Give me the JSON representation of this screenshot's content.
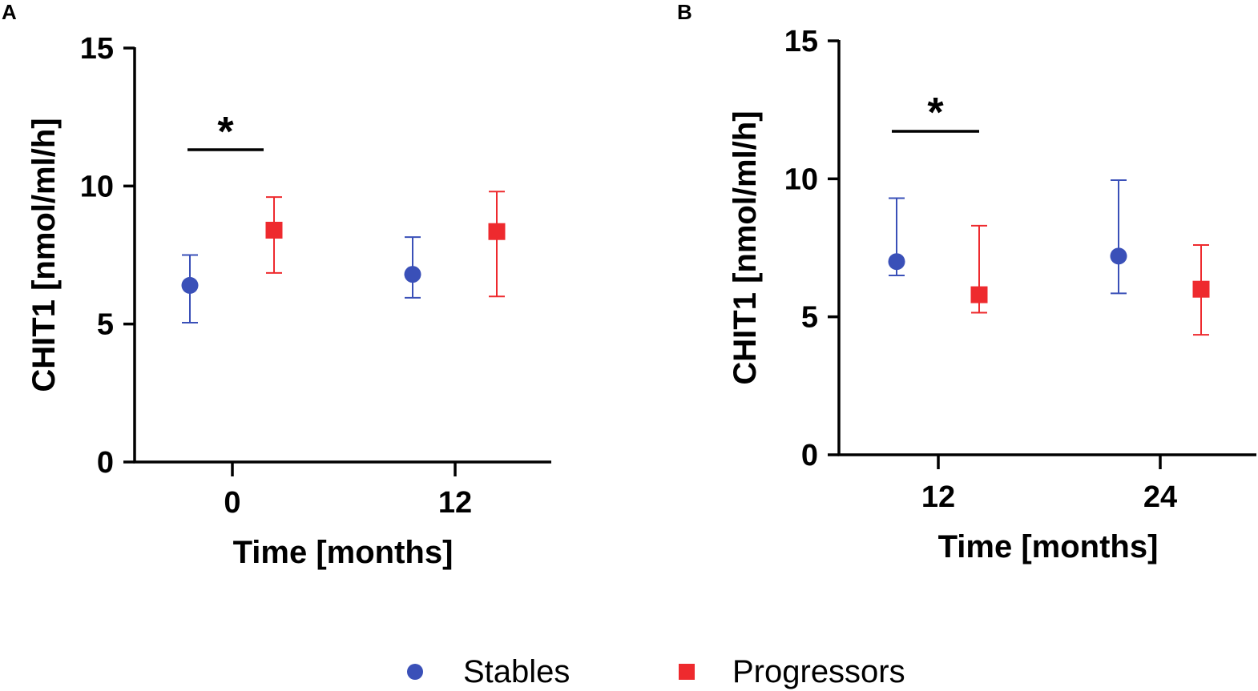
{
  "legend": {
    "items": [
      {
        "label": "Stables",
        "color": "#3a50b8",
        "marker": "circle"
      },
      {
        "label": "Progressors",
        "color": "#ee2a2e",
        "marker": "square"
      }
    ]
  },
  "chart_data": [
    {
      "panel": "A",
      "type": "scatter",
      "title": "",
      "xlabel": "Time  [months]",
      "ylabel": "CHIT1 [nmol/ml/h]",
      "ylim": [
        0,
        15
      ],
      "yticks": [
        "0",
        "5",
        "10",
        "15"
      ],
      "categories": [
        "0",
        "12"
      ],
      "series": [
        {
          "name": "Stables",
          "values": [
            6.4,
            6.8
          ],
          "err_low": [
            5.05,
            5.95
          ],
          "err_high": [
            7.5,
            8.15
          ]
        },
        {
          "name": "Progressors",
          "values": [
            8.4,
            8.35
          ],
          "err_low": [
            6.85,
            6.0
          ],
          "err_high": [
            9.6,
            9.8
          ]
        }
      ],
      "significance": [
        {
          "category": "0",
          "label": "*"
        }
      ]
    },
    {
      "panel": "B",
      "type": "scatter",
      "title": "",
      "xlabel": "Time  [months]",
      "ylabel": "CHIT1 [nmol/ml/h]",
      "ylim": [
        0,
        15
      ],
      "yticks": [
        "0",
        "5",
        "10",
        "15"
      ],
      "categories": [
        "12",
        "24"
      ],
      "series": [
        {
          "name": "Stables",
          "values": [
            7.0,
            7.2
          ],
          "err_low": [
            6.5,
            5.85
          ],
          "err_high": [
            9.3,
            9.95
          ]
        },
        {
          "name": "Progressors",
          "values": [
            5.8,
            6.0
          ],
          "err_low": [
            5.15,
            4.35
          ],
          "err_high": [
            8.3,
            7.6
          ]
        }
      ],
      "significance": [
        {
          "category": "12",
          "label": "*"
        }
      ]
    }
  ]
}
